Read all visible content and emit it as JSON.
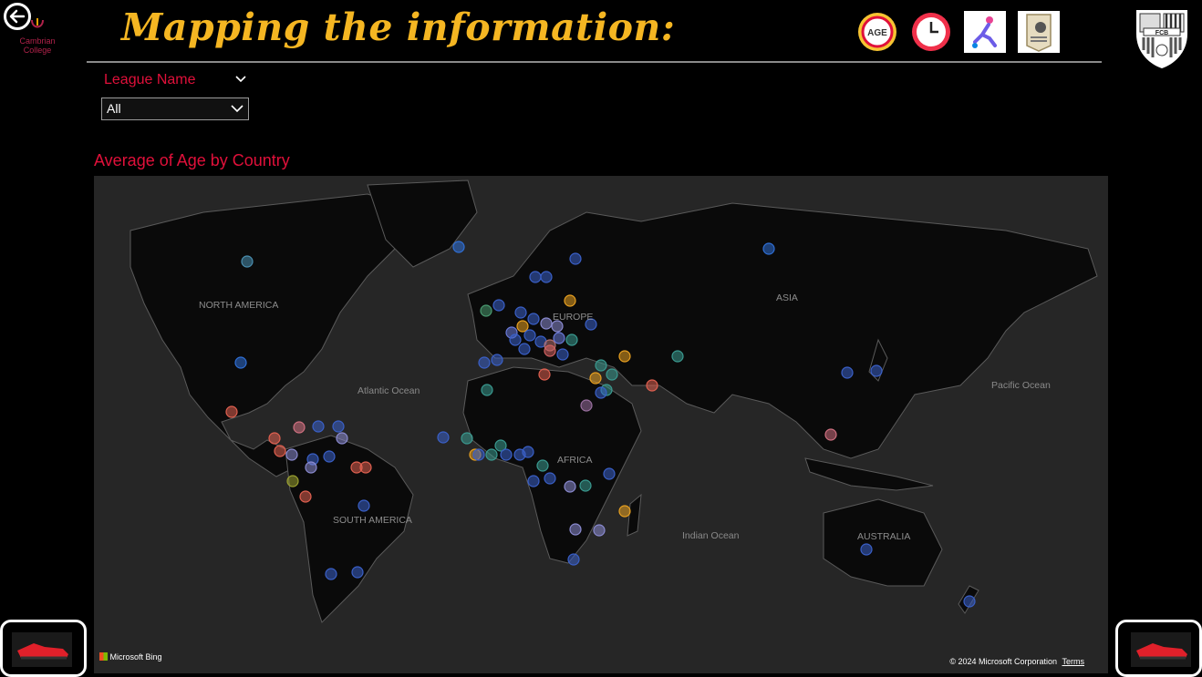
{
  "header": {
    "title": "Mapping the information:",
    "college_name": "Cambrian College",
    "icons": [
      "age-icon",
      "clock-icon",
      "soccer-player-icon",
      "player-card-icon",
      "fcb-crest-icon"
    ]
  },
  "slicer": {
    "label": "League Name",
    "selected": "All"
  },
  "map": {
    "title": "Average of Age by Country",
    "labels": {
      "north_america": "NORTH AMERICA",
      "europe": "EUROPE",
      "asia": "ASIA",
      "africa": "AFRICA",
      "south_america": "SOUTH AMERICA",
      "australia": "AUSTRALIA",
      "atlantic": "Atlantic Ocean",
      "pacific": "Pacific Ocean",
      "indian": "Indian Ocean"
    },
    "attribution": "Microsoft Bing",
    "copyright": "© 2024 Microsoft Corporation",
    "terms": "Terms"
  },
  "colors": {
    "title": "#f5b622",
    "accent_red": "#e0103a",
    "background": "#000000",
    "map_land": "#0a0a0a",
    "map_water": "#262626"
  }
}
